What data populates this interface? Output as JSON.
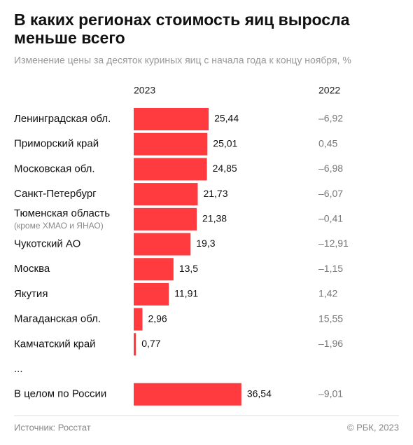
{
  "chart_data": {
    "type": "bar",
    "title": "В каких регионах стоимость яиц выросла меньше всего",
    "subtitle": "Изменение цены за десяток куриных яиц с начала года к концу ноября, %",
    "categories": [
      "Ленинградская обл.",
      "Приморский край",
      "Московская обл.",
      "Санкт-Петербург",
      "Тюменская область",
      "Чукотский АО",
      "Москва",
      "Якутия",
      "Магаданская обл.",
      "Камчатский край",
      "...",
      "В целом по России"
    ],
    "category_notes": [
      null,
      null,
      null,
      null,
      "(кроме ХМАО и ЯНАО)",
      null,
      null,
      null,
      null,
      null,
      null,
      null
    ],
    "series": [
      {
        "name": "2023",
        "color": "#ff3b3f",
        "values": [
          25.44,
          25.01,
          24.85,
          21.73,
          21.38,
          19.3,
          13.5,
          11.91,
          2.96,
          0.77,
          null,
          36.54
        ],
        "value_labels": [
          "25,44",
          "25,01",
          "24,85",
          "21,73",
          "21,38",
          "19,3",
          "13,5",
          "11,91",
          "2,96",
          "0,77",
          null,
          "36,54"
        ]
      },
      {
        "name": "2022",
        "values": [
          -6.92,
          0.45,
          -6.98,
          -6.07,
          -0.41,
          -12.91,
          -1.15,
          1.42,
          15.55,
          -1.96,
          null,
          -9.01
        ],
        "value_labels": [
          "–6,92",
          "0,45",
          "–6,98",
          "–6,07",
          "–0,41",
          "–12,91",
          "–1,15",
          "1,42",
          "15,55",
          "–1,96",
          null,
          "–9,01"
        ]
      }
    ],
    "source": "Источник: Росстат",
    "copyright": "© РБК, 2023"
  }
}
